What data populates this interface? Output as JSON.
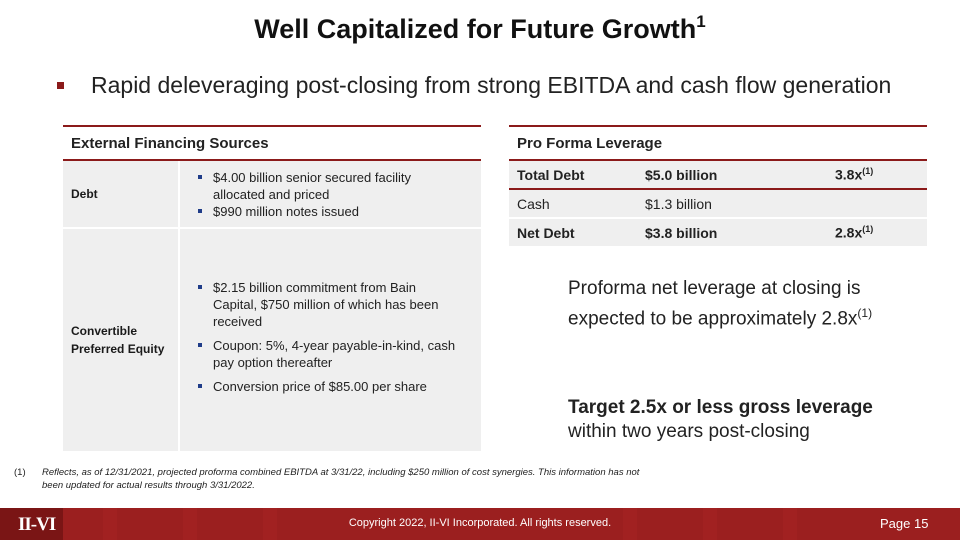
{
  "title": {
    "text": "Well Capitalized for Future Growth",
    "sup": "1"
  },
  "headline": "Rapid deleveraging post-closing from strong EBITDA and cash flow generation",
  "external_financing": {
    "header": "External Financing Sources",
    "rows": [
      {
        "label": "Debt",
        "bullets": [
          "$4.00 billion senior secured facility allocated and priced",
          "$990 million notes issued"
        ]
      },
      {
        "label": "Convertible Preferred Equity",
        "bullets": [
          "$2.15 billion commitment from Bain Capital, $750 million of which has been received",
          "Coupon: 5%, 4-year payable-in-kind, cash pay option thereafter",
          "Conversion price of $85.00 per share"
        ]
      }
    ]
  },
  "pro_forma": {
    "header": "Pro Forma Leverage",
    "rows": [
      {
        "label": "Total Debt",
        "amount": "$5.0 billion",
        "multiple": "3.8x",
        "sup": "(1)"
      },
      {
        "label": "Cash",
        "amount": "$1.3 billion",
        "multiple": "",
        "sup": ""
      },
      {
        "label": "Net Debt",
        "amount": "$3.8 billion",
        "multiple": "2.8x",
        "sup": "(1)"
      }
    ]
  },
  "note_leverage": {
    "line1": "Proforma net leverage at closing is",
    "line2": "expected to be approximately 2.8x",
    "sup": "(1)"
  },
  "note_target": {
    "strong": "Target 2.5x or less gross leverage",
    "rest": "within two years post-closing"
  },
  "footnote": {
    "num": "(1)",
    "text": "Reflects, as of 12/31/2021, projected proforma combined EBITDA at 3/31/22, including $250 million of cost synergies.  This information has not been updated for actual results through 3/31/2022."
  },
  "footer": {
    "logo": "II-VI",
    "copyright": "Copyright 2022, II-VI Incorporated. All rights reserved.",
    "page": "Page 15"
  },
  "colors": {
    "accent": "#8b1a1a",
    "bullet": "#1f3c88",
    "row_bg": "#efefef"
  }
}
